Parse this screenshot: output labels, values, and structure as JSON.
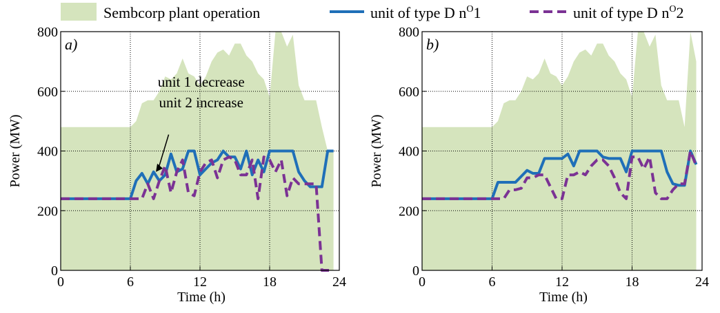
{
  "legend": {
    "entries": [
      {
        "key": "area",
        "label": "Sembcorp plant operation",
        "color": "#d5e4bd"
      },
      {
        "key": "unit1",
        "label": "unit of type D n",
        "superscript": "O",
        "suffix": "1",
        "color": "#1f6fb8"
      },
      {
        "key": "unit2",
        "label": "unit of type D n",
        "superscript": "O",
        "suffix": "2",
        "color": "#7b3294"
      }
    ]
  },
  "chart_data": [
    {
      "type": "line",
      "panel_label": "a)",
      "xlabel": "Time  (h)",
      "ylabel": "Power (MW)",
      "xlim": [
        0,
        24
      ],
      "ylim": [
        0,
        800
      ],
      "xticks": [
        0,
        6,
        12,
        18,
        24
      ],
      "yticks": [
        0,
        200,
        400,
        600,
        800
      ],
      "grid": true,
      "annotation": {
        "lines": [
          "unit  1 decrease",
          "unit  2 increase"
        ],
        "arrow_to": {
          "x": 8.2,
          "y": 330
        }
      },
      "area": {
        "name": "Sembcorp plant operation",
        "color": "#d5e4bd",
        "x": [
          0,
          6,
          6.5,
          7,
          7.5,
          8,
          8.5,
          9,
          9.5,
          10,
          10.5,
          11,
          11.5,
          12,
          12.5,
          13,
          13.5,
          14,
          14.5,
          15,
          15.5,
          16,
          16.5,
          17,
          17.5,
          18,
          18.5,
          19,
          19.5,
          20,
          20.5,
          21,
          21.5,
          22,
          22.5,
          23,
          23.5
        ],
        "y": [
          480,
          480,
          500,
          560,
          570,
          570,
          600,
          650,
          640,
          660,
          710,
          660,
          650,
          620,
          650,
          700,
          730,
          740,
          720,
          760,
          760,
          720,
          700,
          660,
          640,
          580,
          800,
          800,
          750,
          790,
          620,
          570,
          570,
          570,
          480,
          400,
          400
        ]
      },
      "series": [
        {
          "name": "unit of type D nO1",
          "color": "#1f6fb8",
          "dash": "solid",
          "x": [
            0,
            6,
            6.5,
            7,
            7.5,
            8,
            8.5,
            9,
            9.5,
            10,
            10.5,
            11,
            11.5,
            12,
            12.5,
            13,
            13.5,
            14,
            14.5,
            15,
            15.5,
            16,
            16.5,
            17,
            17.5,
            18,
            18.5,
            19,
            19.5,
            20,
            20.5,
            21,
            21.5,
            22,
            22.5,
            23,
            23.5
          ],
          "y": [
            240,
            240,
            300,
            325,
            290,
            330,
            300,
            320,
            390,
            330,
            340,
            400,
            400,
            320,
            340,
            360,
            370,
            400,
            380,
            380,
            340,
            400,
            320,
            370,
            330,
            400,
            400,
            400,
            400,
            400,
            330,
            300,
            280,
            280,
            280,
            400,
            400
          ]
        },
        {
          "name": "unit of type D nO2",
          "color": "#7b3294",
          "dash": "dashed",
          "x": [
            0,
            6,
            6.5,
            7,
            7.5,
            8,
            8.5,
            9,
            9.5,
            10,
            10.5,
            11,
            11.5,
            12,
            12.5,
            13,
            13.5,
            14,
            14.5,
            15,
            15.5,
            16,
            16.5,
            17,
            17.5,
            18,
            18.5,
            19,
            19.5,
            20,
            20.5,
            21,
            21.5,
            22,
            22.5,
            23,
            23.5
          ],
          "y": [
            240,
            240,
            240,
            240,
            290,
            240,
            300,
            350,
            260,
            330,
            370,
            260,
            250,
            330,
            360,
            370,
            310,
            370,
            380,
            370,
            320,
            320,
            370,
            240,
            380,
            370,
            330,
            370,
            250,
            310,
            290,
            290,
            290,
            290,
            0,
            0,
            0
          ]
        }
      ]
    },
    {
      "type": "line",
      "panel_label": "b)",
      "xlabel": "Time  (h)",
      "ylabel": "Power (MW)",
      "xlim": [
        0,
        24
      ],
      "ylim": [
        0,
        800
      ],
      "xticks": [
        0,
        6,
        12,
        18,
        24
      ],
      "yticks": [
        0,
        200,
        400,
        600,
        800
      ],
      "grid": true,
      "area": {
        "name": "Sembcorp plant operation",
        "color": "#d5e4bd",
        "x": [
          0,
          6,
          6.5,
          7,
          7.5,
          8,
          8.5,
          9,
          9.5,
          10,
          10.5,
          11,
          11.5,
          12,
          12.5,
          13,
          13.5,
          14,
          14.5,
          15,
          15.5,
          16,
          16.5,
          17,
          17.5,
          18,
          18.5,
          19,
          19.5,
          20,
          20.5,
          21,
          21.5,
          22,
          22.5,
          23,
          23.5
        ],
        "y": [
          480,
          480,
          500,
          560,
          570,
          570,
          600,
          650,
          640,
          660,
          710,
          660,
          650,
          620,
          650,
          700,
          730,
          740,
          720,
          760,
          760,
          720,
          700,
          660,
          640,
          580,
          800,
          800,
          750,
          790,
          620,
          570,
          570,
          570,
          480,
          800,
          700
        ]
      },
      "series": [
        {
          "name": "unit of type D nO1",
          "color": "#1f6fb8",
          "dash": "solid",
          "x": [
            0,
            6,
            6.5,
            7,
            7.5,
            8,
            8.5,
            9,
            9.5,
            10,
            10.5,
            11,
            11.5,
            12,
            12.5,
            13,
            13.5,
            14,
            14.5,
            15,
            15.5,
            16,
            16.5,
            17,
            17.5,
            18,
            18.5,
            19,
            19.5,
            20,
            20.5,
            21,
            21.5,
            22,
            22.5,
            23,
            23.5
          ],
          "y": [
            240,
            240,
            295,
            295,
            295,
            295,
            315,
            335,
            325,
            325,
            375,
            375,
            375,
            375,
            390,
            350,
            400,
            400,
            400,
            400,
            380,
            375,
            375,
            375,
            330,
            400,
            400,
            400,
            400,
            400,
            400,
            330,
            290,
            285,
            285,
            400,
            355
          ]
        },
        {
          "name": "unit of type D nO2",
          "color": "#7b3294",
          "dash": "dashed",
          "x": [
            0,
            6,
            6.5,
            7,
            7.5,
            8,
            8.5,
            9,
            9.5,
            10,
            10.5,
            11,
            11.5,
            12,
            12.5,
            13,
            13.5,
            14,
            14.5,
            15,
            15.5,
            16,
            16.5,
            17,
            17.5,
            18,
            18.5,
            19,
            19.5,
            20,
            20.5,
            21,
            21.5,
            22,
            22.5,
            23,
            23.5
          ],
          "y": [
            240,
            240,
            240,
            240,
            270,
            270,
            275,
            310,
            310,
            320,
            320,
            280,
            240,
            240,
            320,
            320,
            330,
            320,
            350,
            370,
            370,
            350,
            310,
            260,
            240,
            380,
            380,
            340,
            380,
            260,
            240,
            240,
            270,
            290,
            290,
            400,
            350
          ]
        }
      ]
    }
  ]
}
